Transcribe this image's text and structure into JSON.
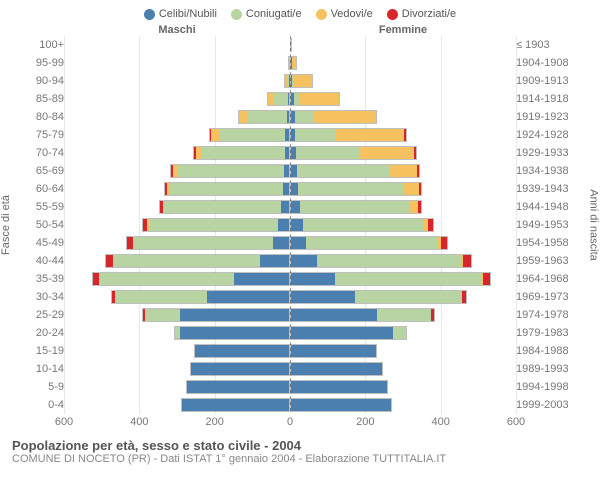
{
  "legend": [
    {
      "label": "Celibi/Nubili",
      "color": "#4a7fb0"
    },
    {
      "label": "Coniugati/e",
      "color": "#b9d4a3"
    },
    {
      "label": "Vedovi/e",
      "color": "#f6c260"
    },
    {
      "label": "Divorziati/e",
      "color": "#d6262a"
    }
  ],
  "column_titles": {
    "left": "Maschi",
    "right": "Femmine"
  },
  "axis_titles": {
    "left": "Fasce di età",
    "right": "Anni di nascita"
  },
  "x_ticks": [
    600,
    400,
    200,
    0,
    200,
    400,
    600
  ],
  "x_max": 600,
  "colors": {
    "celibi": "#4a7fb0",
    "coniugati": "#b9d4a3",
    "vedovi": "#f6c260",
    "divorziati": "#d6262a",
    "grid": "#e8e8e8",
    "bg": "#ffffff"
  },
  "rows": [
    {
      "age": "100+",
      "year": "≤ 1903",
      "m": [
        0,
        0,
        0,
        0
      ],
      "f": [
        0,
        0,
        3,
        0
      ]
    },
    {
      "age": "95-99",
      "year": "1904-1908",
      "m": [
        0,
        0,
        4,
        0
      ],
      "f": [
        2,
        0,
        16,
        0
      ]
    },
    {
      "age": "90-94",
      "year": "1909-1913",
      "m": [
        2,
        4,
        10,
        0
      ],
      "f": [
        4,
        2,
        55,
        0
      ]
    },
    {
      "age": "85-89",
      "year": "1914-1918",
      "m": [
        4,
        40,
        18,
        0
      ],
      "f": [
        8,
        18,
        110,
        0
      ]
    },
    {
      "age": "80-84",
      "year": "1919-1923",
      "m": [
        6,
        110,
        25,
        0
      ],
      "f": [
        10,
        55,
        170,
        0
      ]
    },
    {
      "age": "75-79",
      "year": "1924-1928",
      "m": [
        10,
        180,
        25,
        3
      ],
      "f": [
        12,
        110,
        190,
        3
      ]
    },
    {
      "age": "70-74",
      "year": "1929-1933",
      "m": [
        10,
        230,
        18,
        3
      ],
      "f": [
        14,
        175,
        150,
        4
      ]
    },
    {
      "age": "65-69",
      "year": "1934-1938",
      "m": [
        14,
        290,
        14,
        6
      ],
      "f": [
        16,
        255,
        75,
        6
      ]
    },
    {
      "age": "60-64",
      "year": "1939-1943",
      "m": [
        16,
        310,
        8,
        6
      ],
      "f": [
        18,
        290,
        42,
        8
      ]
    },
    {
      "age": "55-59",
      "year": "1944-1948",
      "m": [
        22,
        320,
        4,
        8
      ],
      "f": [
        26,
        300,
        22,
        10
      ]
    },
    {
      "age": "50-54",
      "year": "1949-1953",
      "m": [
        30,
        355,
        4,
        12
      ],
      "f": [
        32,
        330,
        14,
        14
      ]
    },
    {
      "age": "45-49",
      "year": "1954-1958",
      "m": [
        45,
        380,
        2,
        16
      ],
      "f": [
        42,
        360,
        8,
        18
      ]
    },
    {
      "age": "40-44",
      "year": "1959-1963",
      "m": [
        80,
        400,
        2,
        18
      ],
      "f": [
        70,
        395,
        6,
        20
      ]
    },
    {
      "age": "35-39",
      "year": "1964-1968",
      "m": [
        150,
        370,
        0,
        16
      ],
      "f": [
        120,
        400,
        4,
        18
      ]
    },
    {
      "age": "30-34",
      "year": "1969-1973",
      "m": [
        225,
        250,
        0,
        10
      ],
      "f": [
        175,
        290,
        2,
        12
      ]
    },
    {
      "age": "25-29",
      "year": "1974-1978",
      "m": [
        300,
        95,
        0,
        4
      ],
      "f": [
        235,
        150,
        0,
        6
      ]
    },
    {
      "age": "20-24",
      "year": "1979-1983",
      "m": [
        300,
        14,
        0,
        0
      ],
      "f": [
        280,
        35,
        0,
        0
      ]
    },
    {
      "age": "15-19",
      "year": "1984-1988",
      "m": [
        260,
        0,
        0,
        0
      ],
      "f": [
        235,
        0,
        0,
        0
      ]
    },
    {
      "age": "10-14",
      "year": "1989-1993",
      "m": [
        270,
        0,
        0,
        0
      ],
      "f": [
        250,
        0,
        0,
        0
      ]
    },
    {
      "age": "5-9",
      "year": "1994-1998",
      "m": [
        280,
        0,
        0,
        0
      ],
      "f": [
        265,
        0,
        0,
        0
      ]
    },
    {
      "age": "0-4",
      "year": "1999-2003",
      "m": [
        295,
        0,
        0,
        0
      ],
      "f": [
        275,
        0,
        0,
        0
      ]
    }
  ],
  "footer": {
    "title": "Popolazione per età, sesso e stato civile - 2004",
    "sub": "COMUNE DI NOCETO (PR) - Dati ISTAT 1° gennaio 2004 - Elaborazione TUTTITALIA.IT"
  }
}
